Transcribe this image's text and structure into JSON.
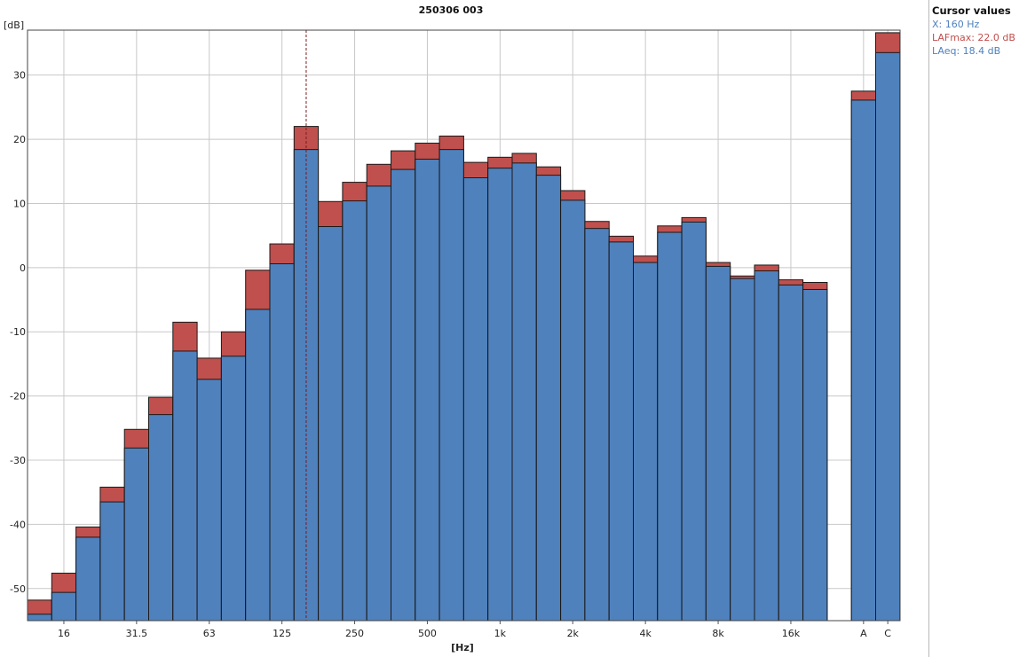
{
  "chart_data": {
    "type": "bar",
    "title": "250306 003",
    "ylabel": "[dB]",
    "xlabel": "[Hz]",
    "ylim": [
      -55,
      37
    ],
    "yticks": [
      -50,
      -40,
      -30,
      -20,
      -10,
      0,
      10,
      20,
      30
    ],
    "categories": [
      "12.5",
      "16",
      "20",
      "25",
      "31.5",
      "40",
      "50",
      "63",
      "80",
      "100",
      "125",
      "160",
      "200",
      "250",
      "315",
      "400",
      "500",
      "630",
      "800",
      "1k",
      "1.25k",
      "1.6k",
      "2k",
      "2.5k",
      "3.15k",
      "4k",
      "5k",
      "6.3k",
      "8k",
      "10k",
      "12.5k",
      "16k",
      "20k",
      "A",
      "C"
    ],
    "xtick_labels": [
      "16",
      "31.5",
      "63",
      "125",
      "250",
      "500",
      "1k",
      "2k",
      "4k",
      "8k",
      "16k",
      "A",
      "C"
    ],
    "series": [
      {
        "name": "LAFmax",
        "color": "#c0504d",
        "values": [
          -51.8,
          -47.6,
          -40.4,
          -34.2,
          -25.2,
          -20.2,
          -8.5,
          -14.1,
          -10.0,
          -0.4,
          3.7,
          22.0,
          10.3,
          13.3,
          16.1,
          18.2,
          19.4,
          20.5,
          16.4,
          17.2,
          17.8,
          15.7,
          12.0,
          7.2,
          4.9,
          1.8,
          6.5,
          7.8,
          0.8,
          -1.3,
          0.4,
          -1.9,
          -2.3,
          27.5,
          36.6
        ]
      },
      {
        "name": "LAeq",
        "color": "#4f81bd",
        "values": [
          -54.0,
          -50.6,
          -42.0,
          -36.5,
          -28.1,
          -22.9,
          -13.0,
          -17.4,
          -13.8,
          -6.5,
          0.6,
          18.4,
          6.4,
          10.4,
          12.7,
          15.3,
          16.9,
          18.4,
          14.0,
          15.5,
          16.3,
          14.4,
          10.5,
          6.1,
          4.0,
          0.8,
          5.5,
          7.1,
          0.2,
          -1.7,
          -0.5,
          -2.7,
          -3.4,
          26.1,
          33.5
        ]
      }
    ],
    "cursor": {
      "category": "160"
    },
    "grid": true
  },
  "cursor_panel": {
    "title": "Cursor values",
    "x_line": "X: 160 Hz",
    "lafmax_line": "LAFmax: 22.0 dB",
    "laeq_line": "LAeq: 18.4 dB",
    "x_color": "#4f81bd",
    "lafmax_color": "#c0504d",
    "laeq_color": "#4f81bd"
  }
}
